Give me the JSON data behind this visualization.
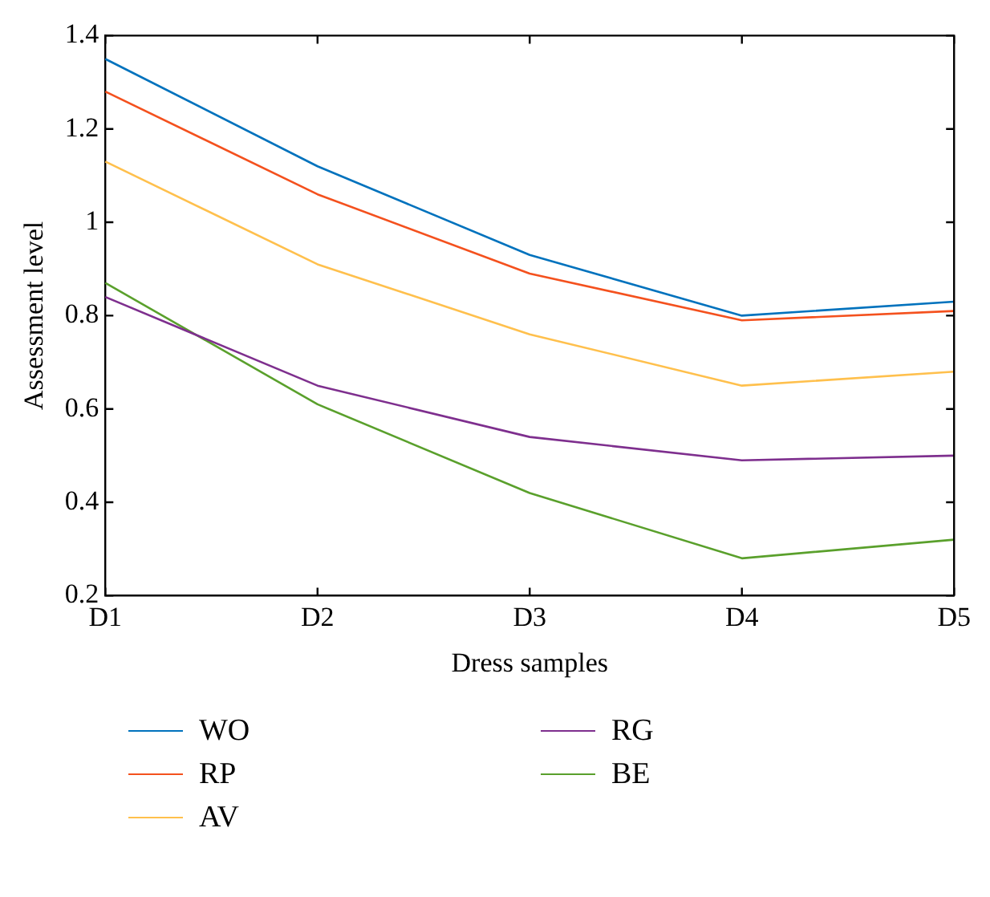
{
  "chart_data": {
    "type": "line",
    "xlabel": "Dress samples",
    "ylabel": "Assessment level",
    "categories": [
      "D1",
      "D2",
      "D3",
      "D4",
      "D5"
    ],
    "series": [
      {
        "name": "WO",
        "color": "#0072bd",
        "values": [
          1.35,
          1.12,
          0.93,
          0.8,
          0.83
        ]
      },
      {
        "name": "RP",
        "color": "#f4511e",
        "values": [
          1.28,
          1.06,
          0.89,
          0.79,
          0.81
        ]
      },
      {
        "name": "AV",
        "color": "#ffc04d",
        "values": [
          1.13,
          0.91,
          0.76,
          0.65,
          0.68
        ]
      },
      {
        "name": "RG",
        "color": "#7e2f8e",
        "values": [
          0.84,
          0.65,
          0.54,
          0.49,
          0.5
        ]
      },
      {
        "name": "BE",
        "color": "#5aa02c",
        "values": [
          0.87,
          0.61,
          0.42,
          0.28,
          0.32
        ]
      }
    ],
    "ylim": [
      0.2,
      1.4
    ],
    "yticks": [
      0.2,
      0.4,
      0.6,
      0.8,
      1,
      1.2,
      1.4
    ],
    "grid": false,
    "legend": "bottom",
    "marker": "none",
    "line_style": "solid"
  }
}
